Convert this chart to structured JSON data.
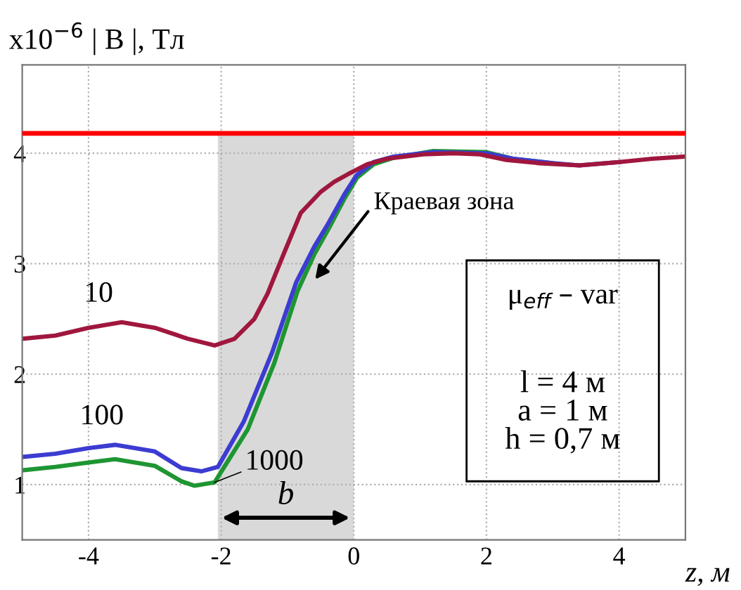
{
  "chart_data": {
    "type": "line",
    "ylabel": "x10$^{−6}$ | B |, Тл",
    "xlabel": "z, м",
    "xlim": [
      -5,
      5
    ],
    "xticks": [
      -4,
      -2,
      0,
      2,
      4
    ],
    "ylim": [
      0.5,
      4.8
    ],
    "yticks": [
      1,
      2,
      3,
      4
    ],
    "grid": true,
    "line_style": "solid",
    "marker": "none",
    "ref_lines": [
      {
        "axis": "y",
        "value": 4.18,
        "color": "#ff0000",
        "line_style": "solid"
      }
    ],
    "bands": [
      {
        "axis": "x",
        "from": -2.05,
        "to": 0,
        "label": "b",
        "color": "#d9d9d9"
      }
    ],
    "annotations": [
      "Краевая зона",
      "μ$_{eff}$ – var",
      "l = 4 м",
      "a = 1 м",
      "h = 0,7 м"
    ],
    "series": [
      {
        "name": "10",
        "color": "#a0173e",
        "x": [
          -5,
          -4.5,
          -4,
          -3.5,
          -3,
          -2.5,
          -2.1,
          -1.8,
          -1.5,
          -1.3,
          -1.05,
          -0.8,
          -0.5,
          -0.3,
          -0.09,
          0.2,
          0.5,
          1.05,
          1.5,
          1.9,
          2.3,
          2.8,
          3.4,
          4.0,
          4.5,
          5
        ],
        "values": [
          2.32,
          2.35,
          2.42,
          2.47,
          2.42,
          2.32,
          2.26,
          2.32,
          2.5,
          2.73,
          3.1,
          3.46,
          3.65,
          3.74,
          3.81,
          3.9,
          3.95,
          3.99,
          4.0,
          3.99,
          3.94,
          3.91,
          3.89,
          3.92,
          3.95,
          3.97
        ]
      },
      {
        "name": "100",
        "color": "#3c3cd2",
        "x": [
          -5,
          -4.5,
          -4,
          -3.6,
          -3,
          -2.6,
          -2.3,
          -2.05,
          -1.66,
          -1.23,
          -0.87,
          -0.6,
          -0.38,
          -0.15,
          0.04,
          0.3,
          0.6,
          1.2,
          2.0,
          2.4,
          3.0,
          3.4,
          4.0
        ],
        "values": [
          1.25,
          1.28,
          1.33,
          1.36,
          1.3,
          1.15,
          1.12,
          1.16,
          1.57,
          2.2,
          2.83,
          3.15,
          3.37,
          3.62,
          3.8,
          3.92,
          3.97,
          4.01,
          4.0,
          3.95,
          3.91,
          3.89,
          3.92
        ]
      },
      {
        "name": "1000",
        "color": "#1e9632",
        "x": [
          -5,
          -4.5,
          -4,
          -3.6,
          -3,
          -2.6,
          -2.4,
          -2.1,
          -1.6,
          -1.2,
          -0.85,
          -0.6,
          -0.35,
          -0.15,
          0.05,
          0.3,
          0.6,
          1.2,
          2.0,
          2.4,
          3.0
        ],
        "values": [
          1.13,
          1.16,
          1.2,
          1.23,
          1.17,
          1.03,
          0.99,
          1.02,
          1.5,
          2.1,
          2.75,
          3.08,
          3.35,
          3.58,
          3.78,
          3.9,
          3.96,
          4.02,
          4.01,
          3.95,
          3.91
        ]
      }
    ]
  }
}
